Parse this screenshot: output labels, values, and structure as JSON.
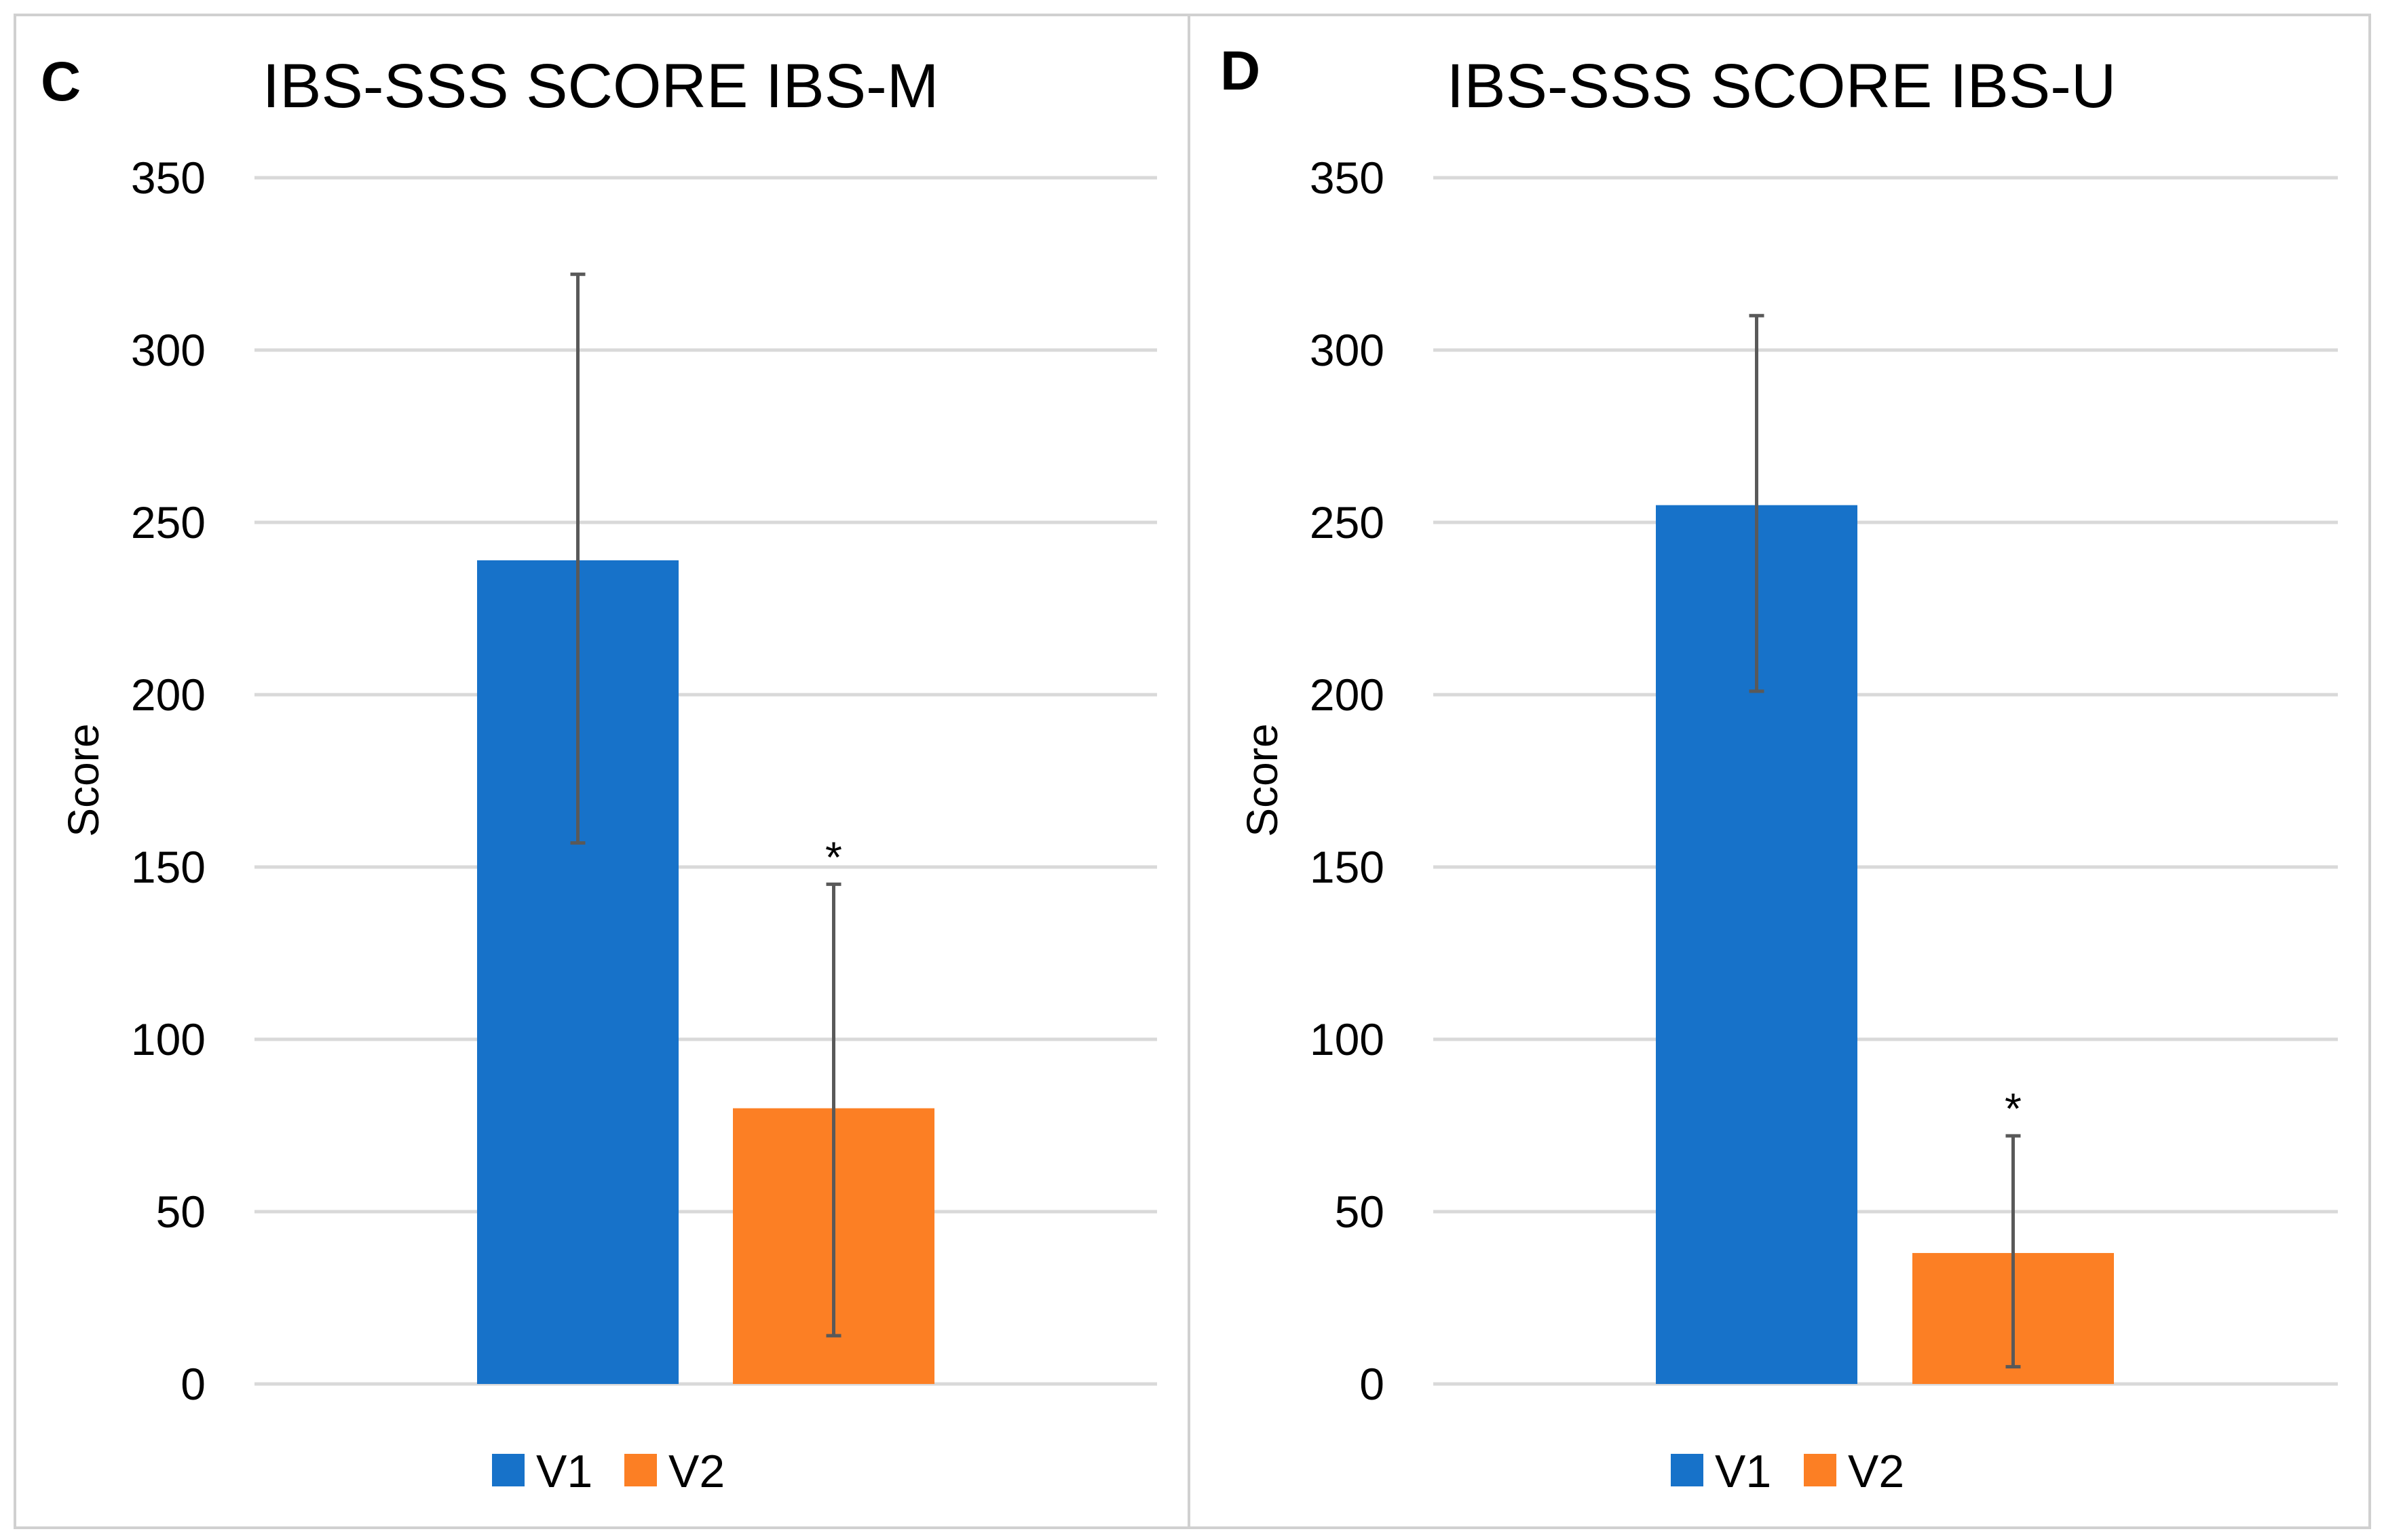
{
  "chart_data": [
    {
      "type": "bar",
      "panel": "C",
      "title": "IBS-SSS SCORE IBS-M",
      "xlabel": "",
      "ylabel": "Score",
      "ylim": [
        0,
        350
      ],
      "yticks": [
        "0",
        "50",
        "100",
        "150",
        "200",
        "250",
        "300",
        "350"
      ],
      "grid": true,
      "legend_position": "bottom",
      "series": [
        {
          "name": "V1",
          "color": "#1772c9",
          "value": 239,
          "err_low": 157,
          "err_high": 322,
          "annotation": ""
        },
        {
          "name": "V2",
          "color": "#fc7f24",
          "value": 80,
          "err_low": 14,
          "err_high": 145,
          "annotation": "*"
        }
      ]
    },
    {
      "type": "bar",
      "panel": "D",
      "title": "IBS-SSS SCORE IBS-U",
      "xlabel": "",
      "ylabel": "Score",
      "ylim": [
        0,
        350
      ],
      "yticks": [
        "0",
        "50",
        "100",
        "150",
        "200",
        "250",
        "300",
        "350"
      ],
      "grid": true,
      "legend_position": "bottom",
      "series": [
        {
          "name": "V1",
          "color": "#1772c9",
          "value": 255,
          "err_low": 201,
          "err_high": 310,
          "annotation": ""
        },
        {
          "name": "V2",
          "color": "#fc7f24",
          "value": 38,
          "err_low": 5,
          "err_high": 72,
          "annotation": "*"
        }
      ]
    }
  ]
}
